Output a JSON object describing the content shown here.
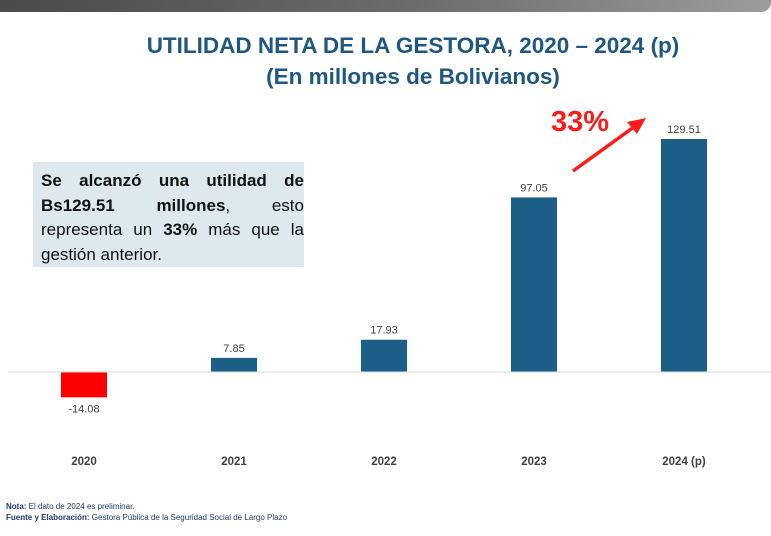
{
  "title_line1": "UTILIDAD NETA DE LA GESTORA, 2020 – 2024 (p)",
  "title_line2": "(En millones de Bolivianos)",
  "callout": {
    "p1": "Se alcanzó una utilidad de Bs129.51 millones",
    "p2": ", esto representa un ",
    "p3": "33%",
    "p4": " más que la gestión anterior."
  },
  "growth_label": "33%",
  "footnote": {
    "nota_label": "Nota:",
    "nota_text": " El dato de 2024 es preliminar.",
    "fuente_label": "Fuente y Elaboración:",
    "fuente_text": " Gestora Pública de la Seguridad Social de Largo Plazo"
  },
  "colors": {
    "bar": "#1b5f86",
    "negative_bar": "#ff0000",
    "title": "#1f5682",
    "arrow": "#ff1a1a"
  },
  "chart_data": {
    "type": "bar",
    "categories": [
      "2020",
      "2021",
      "2022",
      "2023",
      "2024 (p)"
    ],
    "values": [
      -14.08,
      7.85,
      17.93,
      97.05,
      129.51
    ],
    "data_labels": [
      "-14.08",
      "7.85",
      "17.93",
      "97.05",
      "129.51"
    ],
    "title": "UTILIDAD NETA DE LA GESTORA, 2020 – 2024 (p)",
    "subtitle": "(En millones de Bolivianos)",
    "ylim": [
      -14.08,
      129.51
    ],
    "grid": false,
    "legend": "none"
  }
}
